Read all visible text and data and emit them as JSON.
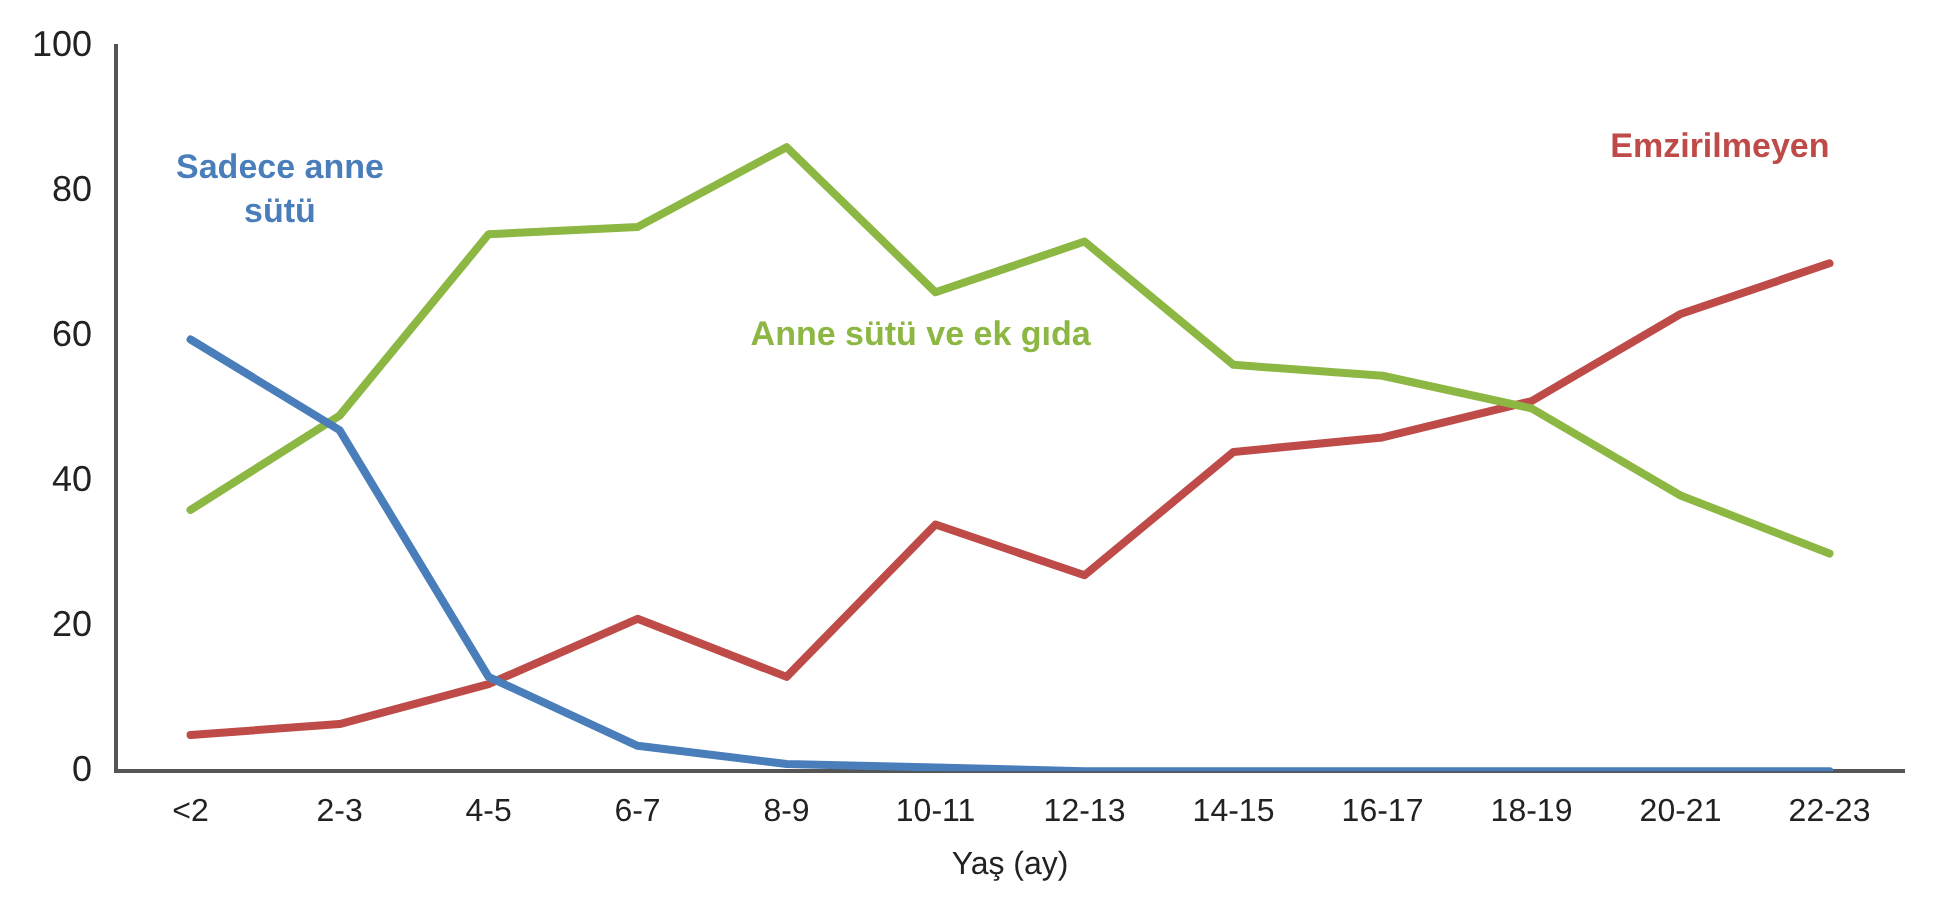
{
  "chart_data": {
    "type": "line",
    "xlabel": "Yaş (ay)",
    "categories": [
      "<2",
      "2-3",
      "4-5",
      "6-7",
      "8-9",
      "10-11",
      "12-13",
      "14-15",
      "16-17",
      "18-19",
      "20-21",
      "22-23"
    ],
    "series": [
      {
        "name": "Sadece anne sütü",
        "color": "#4a7ebb",
        "values": [
          59.5,
          47,
          13,
          3.5,
          1,
          0.5,
          0,
          0,
          0,
          0,
          0,
          0
        ]
      },
      {
        "name": "Anne sütü ve ek gıda",
        "color": "#8cb743",
        "values": [
          36,
          49,
          74,
          75,
          86,
          66,
          73,
          56,
          54.5,
          50,
          38,
          30
        ]
      },
      {
        "name": "Emzirilmeyen",
        "color": "#be4b48",
        "values": [
          5,
          6.5,
          12,
          21,
          13,
          34,
          27,
          44,
          46,
          51,
          63,
          70
        ]
      }
    ],
    "ylim": [
      0,
      100
    ],
    "yticks": [
      0,
      20,
      40,
      60,
      80,
      100
    ],
    "grid": false,
    "legend": false,
    "marker": "none",
    "line_style": "solid"
  }
}
